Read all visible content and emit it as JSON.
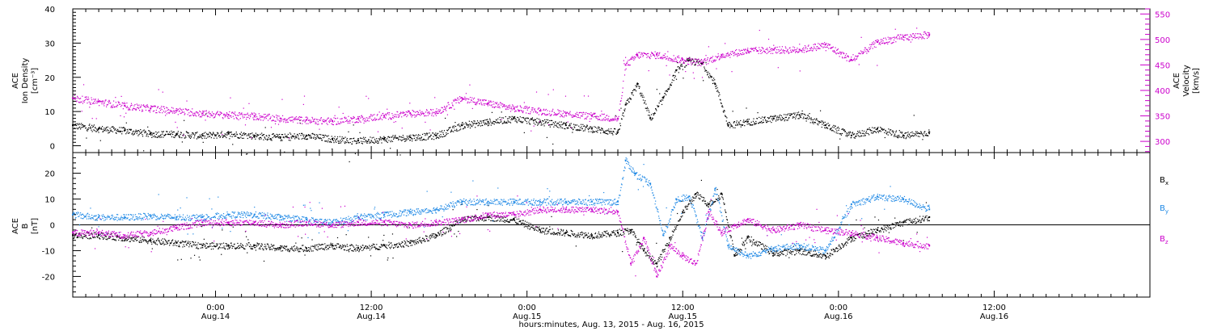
{
  "xaxis": {
    "title": "hours:minutes, Aug. 13, 2015 - Aug. 16, 2015",
    "range_hours": [
      0,
      83
    ],
    "ticks": [
      {
        "hours": 11,
        "time": "0:00",
        "date": "Aug.14"
      },
      {
        "hours": 23,
        "time": "12:00",
        "date": "Aug.14"
      },
      {
        "hours": 35,
        "time": "0:00",
        "date": "Aug.15"
      },
      {
        "hours": 47,
        "time": "12:00",
        "date": "Aug.15"
      },
      {
        "hours": 59,
        "time": "0:00",
        "date": "Aug.16"
      },
      {
        "hours": 71,
        "time": "12:00",
        "date": "Aug.16"
      }
    ]
  },
  "chart_data": [
    {
      "type": "scatter",
      "panel": "top",
      "title": "",
      "ylabel_left": [
        "ACE",
        "Ion Density",
        "[cm⁻³]"
      ],
      "ylabel_right": [
        "ACE",
        "Velocity",
        "[km/s]"
      ],
      "left_ylim": [
        -2,
        40
      ],
      "left_ticks": [
        0,
        10,
        20,
        30,
        40
      ],
      "right_ylim": [
        278,
        560
      ],
      "right_ticks": [
        300,
        350,
        400,
        450,
        500,
        550
      ],
      "series": [
        {
          "axis": "left",
          "color": "#000000",
          "x_hours": [
            0,
            2,
            4,
            6,
            8,
            10,
            12,
            14,
            16,
            18,
            20,
            22,
            24,
            26,
            28,
            30,
            32,
            34,
            36,
            38,
            40,
            42,
            42.6,
            43.5,
            44.5,
            45.5,
            46.5,
            47.5,
            48.5,
            49.5,
            50.5,
            52,
            54,
            56,
            58,
            60,
            62,
            64,
            66
          ],
          "values": [
            6,
            5,
            4.5,
            3.5,
            3.5,
            3,
            3.5,
            3,
            2.5,
            3,
            2,
            1.5,
            2,
            2.5,
            3,
            6,
            7,
            8,
            7,
            6,
            5,
            4,
            12,
            18,
            8,
            14,
            22,
            25,
            24,
            18,
            6,
            7,
            8,
            9,
            6,
            3,
            5,
            3,
            4
          ]
        },
        {
          "axis": "right",
          "color": "#cc00cc",
          "x_hours": [
            0,
            2,
            4,
            6,
            8,
            10,
            12,
            14,
            16,
            18,
            20,
            22,
            24,
            26,
            28,
            30,
            32,
            34,
            36,
            38,
            40,
            42,
            42.6,
            43.5,
            45,
            47,
            48.5,
            50,
            52,
            54,
            56,
            58,
            60,
            62,
            64,
            66
          ],
          "values": [
            385,
            378,
            370,
            365,
            360,
            355,
            352,
            350,
            345,
            342,
            340,
            345,
            350,
            355,
            358,
            385,
            375,
            365,
            360,
            355,
            350,
            345,
            450,
            470,
            470,
            460,
            455,
            470,
            478,
            480,
            480,
            490,
            460,
            495,
            505,
            510
          ]
        }
      ]
    },
    {
      "type": "scatter",
      "panel": "bottom",
      "title": "",
      "ylabel_left": [
        "ACE",
        "B",
        "[nT]"
      ],
      "ylim": [
        -28,
        28
      ],
      "ticks": [
        -20,
        -10,
        0,
        10,
        20
      ],
      "series": [
        {
          "name": "Bx",
          "label": "B",
          "subscript": "x",
          "color": "#000000",
          "x_hours": [
            0,
            2,
            4,
            6,
            8,
            10,
            12,
            14,
            16,
            18,
            20,
            22,
            24,
            26,
            28,
            30,
            32,
            34,
            36,
            38,
            40,
            42,
            43,
            44,
            45,
            46,
            47,
            48,
            49,
            50,
            51,
            52,
            54,
            56,
            58,
            60,
            62,
            64,
            66
          ],
          "values": [
            -4,
            -4,
            -5,
            -6,
            -7,
            -8,
            -8,
            -8,
            -9,
            -9,
            -8,
            -9,
            -8,
            -7,
            -4,
            2,
            3,
            2,
            -2,
            -3,
            -4,
            -3,
            -2,
            -10,
            -15,
            -5,
            5,
            12,
            8,
            12,
            -12,
            -5,
            -11,
            -10,
            -12,
            -5,
            -2,
            1,
            3
          ]
        },
        {
          "name": "By",
          "label": "B",
          "subscript": "y",
          "color": "#1e88e5",
          "x_hours": [
            0,
            2,
            4,
            6,
            8,
            10,
            12,
            14,
            16,
            18,
            20,
            22,
            24,
            26,
            28,
            30,
            32,
            34,
            36,
            38,
            40,
            42,
            42.6,
            43.3,
            44.5,
            45.5,
            46.5,
            47.5,
            48.5,
            49.5,
            50.5,
            52,
            54,
            56,
            58,
            60,
            62,
            64,
            66
          ],
          "values": [
            4,
            3,
            3,
            3.5,
            3,
            3,
            4,
            4,
            3,
            2,
            1,
            3,
            4,
            5,
            6,
            9,
            9,
            9,
            9,
            9,
            9,
            9,
            25,
            20,
            16,
            -4,
            10,
            11,
            -5,
            14,
            -8,
            -12,
            -9,
            -8,
            -10,
            8,
            11,
            10,
            6
          ]
        },
        {
          "name": "Bz",
          "label": "B",
          "subscript": "z",
          "color": "#cc00cc",
          "x_hours": [
            0,
            2,
            4,
            6,
            8,
            10,
            12,
            14,
            16,
            18,
            20,
            22,
            24,
            26,
            28,
            30,
            32,
            34,
            36,
            38,
            40,
            42,
            43,
            44,
            45,
            46,
            47,
            48,
            49,
            50,
            51,
            52,
            54,
            56,
            58,
            60,
            62,
            64,
            66
          ],
          "values": [
            -3,
            -3,
            -4,
            -3,
            -1,
            1,
            1,
            1,
            0,
            1,
            0,
            1,
            1,
            0,
            1,
            2,
            4,
            4,
            6,
            6,
            6,
            5,
            -15,
            -5,
            -20,
            -8,
            -12,
            -15,
            5,
            -3,
            0,
            2,
            -2,
            0,
            -2,
            -3,
            -5,
            -7,
            -8
          ]
        }
      ]
    }
  ]
}
